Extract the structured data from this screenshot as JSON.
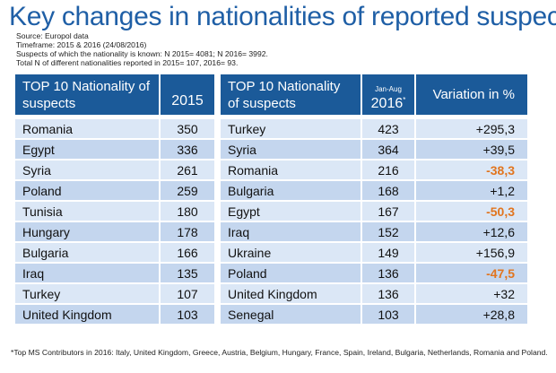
{
  "title": "Key changes in nationalities of reported suspects",
  "meta": {
    "source": "Source: Europol data",
    "timeframe": "Timeframe: 2015 & 2016 (24/08/2016)",
    "known": "Suspects of which the nationality is known: N 2015= 4081; N 2016= 3992.",
    "total": "Total N of different nationalities reported in 2015= 107, 2016= 93."
  },
  "left_table": {
    "header_col1": "TOP 10 Nationality of suspects",
    "header_col2": "2015",
    "rows": [
      {
        "nationality": "Romania",
        "value": "350"
      },
      {
        "nationality": "Egypt",
        "value": "336"
      },
      {
        "nationality": "Syria",
        "value": "261"
      },
      {
        "nationality": "Poland",
        "value": "259"
      },
      {
        "nationality": "Tunisia",
        "value": "180"
      },
      {
        "nationality": "Hungary",
        "value": "178"
      },
      {
        "nationality": "Bulgaria",
        "value": "166"
      },
      {
        "nationality": "Iraq",
        "value": "135"
      },
      {
        "nationality": "Turkey",
        "value": "107"
      },
      {
        "nationality": "United Kingdom",
        "value": "103"
      }
    ]
  },
  "right_table": {
    "header_col1": "TOP 10 Nationality of suspects",
    "header_col2_small": "Jan-Aug",
    "header_col2": "2016",
    "header_col2_mark": "*",
    "header_col3": "Variation in %",
    "rows": [
      {
        "nationality": "Turkey",
        "value": "423",
        "variation": "+295,3"
      },
      {
        "nationality": "Syria",
        "value": "364",
        "variation": "+39,5"
      },
      {
        "nationality": "Romania",
        "value": "216",
        "variation": "-38,3"
      },
      {
        "nationality": "Bulgaria",
        "value": "168",
        "variation": "+1,2"
      },
      {
        "nationality": "Egypt",
        "value": "167",
        "variation": "-50,3"
      },
      {
        "nationality": "Iraq",
        "value": "152",
        "variation": "+12,6"
      },
      {
        "nationality": "Ukraine",
        "value": "149",
        "variation": "+156,9"
      },
      {
        "nationality": "Poland",
        "value": "136",
        "variation": "-47,5"
      },
      {
        "nationality": "United Kingdom",
        "value": "136",
        "variation": "+32"
      },
      {
        "nationality": "Senegal",
        "value": "103",
        "variation": "+28,8"
      }
    ]
  },
  "colors": {
    "header_blue": "#1b5a99",
    "title_blue": "#1f5fa6",
    "row_light": "#dbe7f6",
    "row_dark": "#c4d6ee",
    "negative_orange": "#e1751f"
  },
  "footnote": "*Top MS Contributors in 2016: Italy, United Kingdom, Greece, Austria, Belgium, Hungary, France, Spain, Ireland, Bulgaria, Netherlands, Romania and Poland."
}
